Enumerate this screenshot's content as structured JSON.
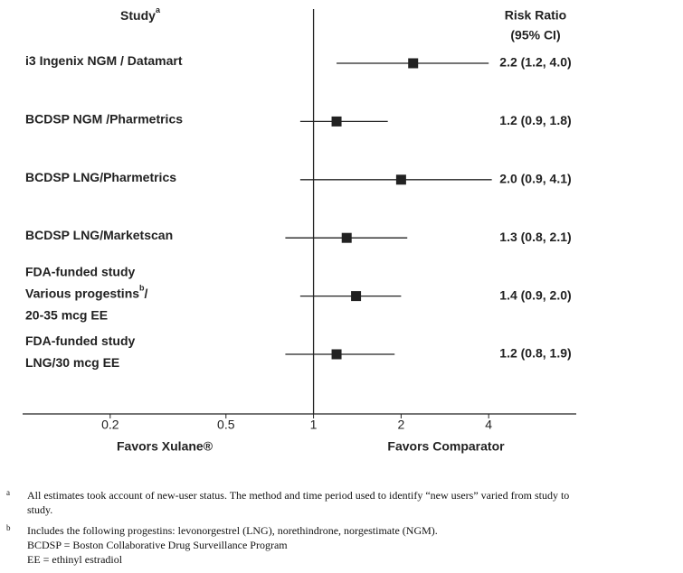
{
  "chart_data": {
    "type": "forest",
    "study_header": [
      {
        "text": "Study"
      },
      {
        "text": "a",
        "sup": true
      }
    ],
    "ci_header": [
      "Risk Ratio",
      "(95% CI)"
    ],
    "studies": [
      [
        [
          {
            "text": "i3 Ingenix NGM / Datamart"
          }
        ]
      ],
      [
        [
          {
            "text": "BCDSP NGM /Pharmetrics"
          }
        ]
      ],
      [
        [
          {
            "text": "BCDSP LNG/Pharmetrics"
          }
        ]
      ],
      [
        [
          {
            "text": "BCDSP LNG/Marketscan"
          }
        ]
      ],
      [
        [
          {
            "text": "FDA-funded study"
          }
        ],
        [
          {
            "text": "Various progestins"
          },
          {
            "text": "b",
            "sup": true
          },
          {
            "text": "/"
          }
        ],
        [
          {
            "text": "20-35 mcg EE"
          }
        ]
      ],
      [
        [
          {
            "text": "FDA-funded study"
          }
        ],
        [
          {
            "text": "LNG/30 mcg EE"
          }
        ]
      ]
    ],
    "values": [
      2.2,
      1.2,
      2.0,
      1.3,
      1.4,
      1.2
    ],
    "lower": [
      1.2,
      0.9,
      0.9,
      0.8,
      0.9,
      0.8
    ],
    "upper": [
      4.0,
      1.8,
      4.1,
      2.1,
      2.0,
      1.9
    ],
    "value_labels": [
      "2.2 (1.2, 4.0)",
      "1.2 (0.9, 1.8)",
      "2.0 (0.9, 4.1)",
      "1.3 (0.8, 2.1)",
      "1.4 (0.9, 2.0)",
      "1.2 (0.8, 1.9)"
    ],
    "color": "#222222",
    "xlim": [
      0.1,
      8
    ],
    "xticks": [
      0.2,
      0.5,
      1,
      2,
      4
    ],
    "log_scale": true,
    "reference_line": 1,
    "favors_left": "Favors Xulane®",
    "favors_right": "Favors Comparator"
  },
  "footnotes": [
    {
      "marker": "a",
      "lines": [
        "All estimates took account of new-user status. The method and time period used to identify “new users” varied from study to",
        "study."
      ]
    },
    {
      "marker": "b",
      "lines": [
        "Includes the following progestins: levonorgestrel (LNG), norethindrone, norgestimate (NGM).",
        "BCDSP = Boston Collaborative Drug Surveillance Program",
        "EE = ethinyl estradiol"
      ]
    }
  ]
}
